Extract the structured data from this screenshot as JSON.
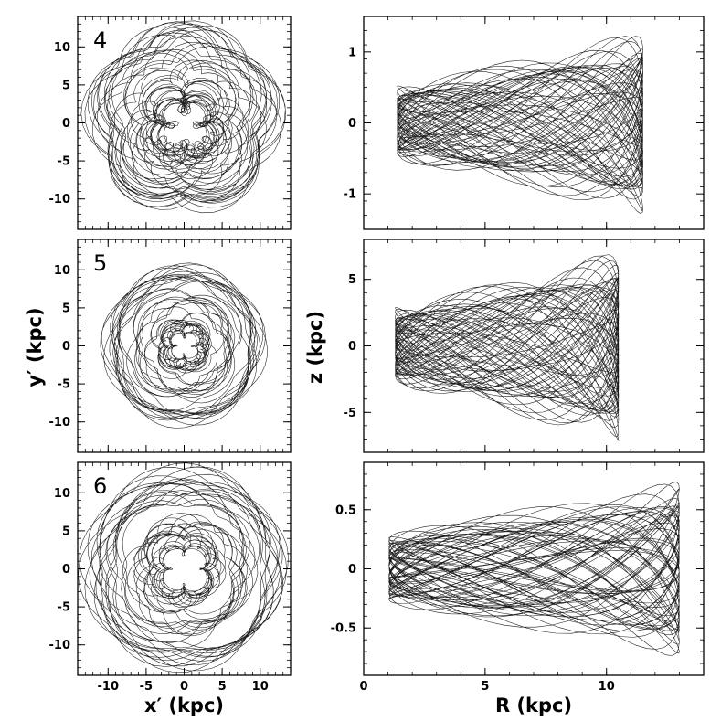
{
  "figure": {
    "xlabel_left": "x′ (kpc)",
    "ylabel_left": "y′ (kpc)",
    "xlabel_right": "R (kpc)",
    "ylabel_right": "z (kpc)"
  },
  "chart_data": [
    {
      "type": "line",
      "panel_label": "4",
      "xlabel": "",
      "ylabel": "",
      "xlim": [
        -14,
        14
      ],
      "ylim": [
        -14,
        14
      ],
      "xticks": [
        -10,
        -5,
        0,
        5,
        10
      ],
      "yticks": [
        -10,
        -5,
        0,
        5,
        10
      ],
      "xtick_labels_shown": false,
      "orbit": {
        "kind": "face-on",
        "radius_range": [
          2,
          11.5
        ],
        "lobe_radius": 6.5,
        "seed": 4
      }
    },
    {
      "type": "line",
      "panel_label": "",
      "xlabel": "",
      "ylabel": "",
      "xlim": [
        0,
        14
      ],
      "ylim": [
        -1.5,
        1.5
      ],
      "xticks": [
        0,
        5,
        10
      ],
      "yticks": [
        -1,
        0,
        1
      ],
      "xtick_labels_shown": false,
      "orbit": {
        "kind": "meridional",
        "R_range": [
          0.5,
          11.5
        ],
        "z_amplitude": 1.3,
        "seed": 14
      }
    },
    {
      "type": "line",
      "panel_label": "5",
      "xlabel": "",
      "ylabel": "",
      "xlim": [
        -14,
        14
      ],
      "ylim": [
        -14,
        14
      ],
      "xticks": [
        -10,
        -5,
        0,
        5,
        10
      ],
      "yticks": [
        -10,
        -5,
        0,
        5,
        10
      ],
      "xtick_labels_shown": false,
      "orbit": {
        "kind": "face-on",
        "radius_range": [
          1,
          10
        ],
        "lobe_radius": 3,
        "seed": 5
      }
    },
    {
      "type": "line",
      "panel_label": "",
      "xlabel": "",
      "ylabel": "",
      "xlim": [
        0,
        14
      ],
      "ylim": [
        -8,
        8
      ],
      "xticks": [
        0,
        5,
        10
      ],
      "yticks": [
        -5,
        0,
        5
      ],
      "xtick_labels_shown": false,
      "orbit": {
        "kind": "meridional",
        "R_range": [
          0.5,
          10.5
        ],
        "z_amplitude": 7.2,
        "seed": 15
      }
    },
    {
      "type": "line",
      "panel_label": "6",
      "xlabel": "x′ (kpc)",
      "ylabel": "",
      "xlim": [
        -14,
        14
      ],
      "ylim": [
        -14,
        14
      ],
      "xticks": [
        -10,
        -5,
        0,
        5,
        10
      ],
      "yticks": [
        -10,
        -5,
        0,
        5,
        10
      ],
      "xtick_labels_shown": true,
      "orbit": {
        "kind": "face-on",
        "radius_range": [
          2,
          12.5
        ],
        "lobe_radius": 4.5,
        "seed": 6
      }
    },
    {
      "type": "line",
      "panel_label": "",
      "xlabel": "R (kpc)",
      "ylabel": "",
      "xlim": [
        0,
        14
      ],
      "ylim": [
        -0.9,
        0.9
      ],
      "xticks": [
        0,
        5,
        10
      ],
      "yticks": [
        -0.5,
        0,
        0.5
      ],
      "xtick_labels_shown": true,
      "orbit": {
        "kind": "meridional",
        "R_range": [
          0,
          13
        ],
        "z_amplitude": 0.75,
        "seed": 16
      }
    }
  ]
}
